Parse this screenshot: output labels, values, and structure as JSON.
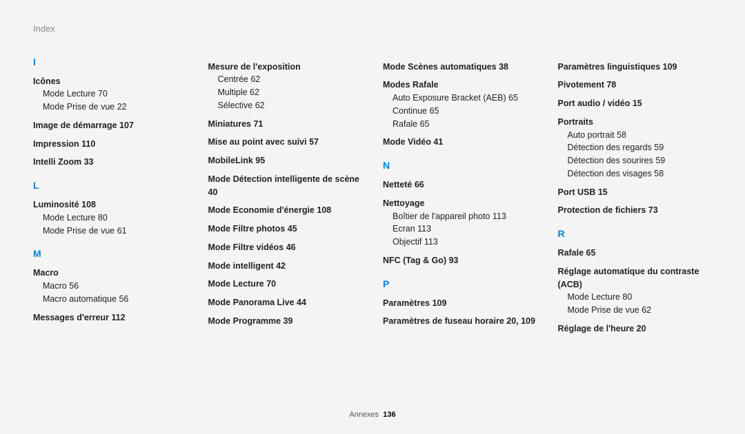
{
  "header": "Index",
  "footer_prefix": "Annexes",
  "footer_page": "136",
  "letter_color": "#0084d6",
  "columns": [
    {
      "sections": [
        {
          "letter": "I",
          "entries": [
            {
              "head": "Icônes",
              "subs": [
                "Mode Lecture  70",
                "Mode Prise de vue  22"
              ]
            },
            {
              "head": "Image de démarrage  107"
            },
            {
              "head": "Impression  110"
            },
            {
              "head": "Intelli Zoom  33"
            }
          ]
        },
        {
          "letter": "L",
          "entries": [
            {
              "head": "Luminosité  108",
              "subs": [
                "Mode Lecture  80",
                "Mode Prise de vue  61"
              ]
            }
          ]
        },
        {
          "letter": "M",
          "entries": [
            {
              "head": "Macro",
              "subs": [
                "Macro  56",
                "Macro automatique  56"
              ]
            },
            {
              "head": "Messages d'erreur  112"
            }
          ]
        }
      ]
    },
    {
      "sections": [
        {
          "entries": [
            {
              "head": "Mesure de l'exposition",
              "subs": [
                "Centrée  62",
                "Multiple  62",
                "Sélective  62"
              ]
            },
            {
              "head": "Miniatures  71"
            },
            {
              "head": "Mise au point avec suivi  57"
            },
            {
              "head": "MobileLink  95"
            },
            {
              "head": "Mode Détection intelligente de scène  40"
            },
            {
              "head": "Mode Economie d'énergie  108"
            },
            {
              "head": "Mode Filtre photos  45"
            },
            {
              "head": "Mode Filtre vidéos  46"
            },
            {
              "head": "Mode intelligent  42"
            },
            {
              "head": "Mode Lecture  70"
            },
            {
              "head": "Mode Panorama Live  44"
            },
            {
              "head": "Mode Programme  39"
            }
          ]
        }
      ]
    },
    {
      "sections": [
        {
          "entries": [
            {
              "head": "Mode Scènes automatiques  38"
            },
            {
              "head": "Modes Rafale",
              "subs": [
                "Auto Exposure Bracket (AEB)  65",
                "Continue  65",
                "Rafale  65"
              ]
            },
            {
              "head": "Mode Vidéo  41"
            }
          ]
        },
        {
          "letter": "N",
          "entries": [
            {
              "head": "Netteté  66"
            },
            {
              "head": "Nettoyage",
              "subs": [
                "Boîtier de l'appareil photo  113",
                "Ecran  113",
                "Objectif  113"
              ]
            },
            {
              "head": "NFC (Tag & Go)  93"
            }
          ]
        },
        {
          "letter": "P",
          "entries": [
            {
              "head": "Paramètres  109"
            },
            {
              "head": "Paramètres de fuseau horaire  20, 109"
            }
          ]
        }
      ]
    },
    {
      "sections": [
        {
          "entries": [
            {
              "head": "Paramètres linguistiques  109"
            },
            {
              "head": "Pivotement  78"
            },
            {
              "head": "Port audio / vidéo  15"
            },
            {
              "head": "Portraits",
              "subs": [
                "Auto portrait  58",
                "Détection des regards  59",
                "Détection des sourires  59",
                "Détection des visages  58"
              ]
            },
            {
              "head": "Port USB  15"
            },
            {
              "head": "Protection de fichiers  73"
            }
          ]
        },
        {
          "letter": "R",
          "entries": [
            {
              "head": "Rafale  65"
            },
            {
              "head": "Réglage automatique du contraste (ACB)",
              "subs": [
                "Mode Lecture  80",
                "Mode Prise de vue  62"
              ]
            },
            {
              "head": "Réglage de l'heure  20"
            }
          ]
        }
      ]
    }
  ]
}
